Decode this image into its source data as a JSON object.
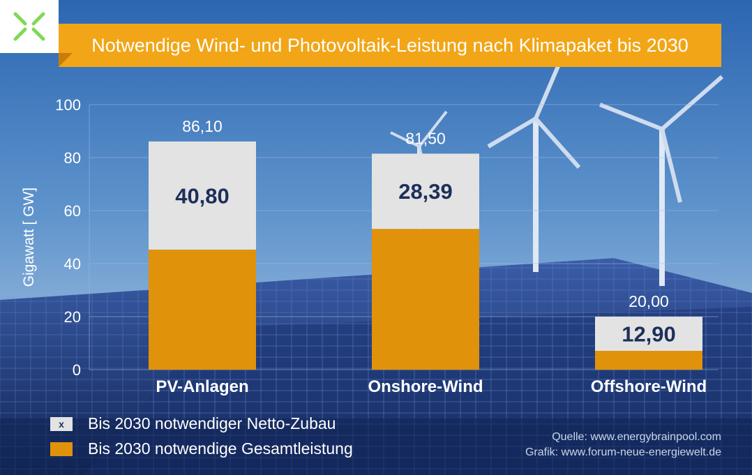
{
  "title": "Notwendige Wind- und Photovoltaik-Leistung nach Klimapaket bis 2030",
  "colors": {
    "brand_orange": "#f2a516",
    "bar_base": "#e0920a",
    "bar_top": "#e3e3e3",
    "logo_green": "#7ed957",
    "value_blue": "#1d2f5a"
  },
  "chart_data": {
    "type": "bar",
    "stacked": true,
    "categories": [
      "PV-Anlagen",
      "Onshore-Wind",
      "Offshore-Wind"
    ],
    "totals": [
      86.1,
      81.5,
      20.0
    ],
    "total_labels": [
      "86,10",
      "81,50",
      "20,00"
    ],
    "series": [
      {
        "name": "Bis 2030 notwendiger Netto-Zubau",
        "values": [
          40.8,
          28.39,
          12.9
        ],
        "labels": [
          "40,80",
          "28,39",
          "12,90"
        ]
      },
      {
        "name": "Bis 2030 notwendige Gesamtleistung",
        "values": [
          45.3,
          53.11,
          7.1
        ]
      }
    ],
    "ylabel": "Gigawatt [ GW]",
    "ylim": [
      0,
      100
    ],
    "yticks": [
      0,
      20,
      40,
      60,
      80,
      100
    ],
    "grid": true,
    "legend_position": "bottom-left"
  },
  "legend": {
    "marker_letter": "x",
    "items": [
      {
        "label": "Bis 2030 notwendiger Netto-Zubau"
      },
      {
        "label": "Bis 2030 notwendige Gesamtleistung"
      }
    ]
  },
  "source": {
    "line1": "Quelle: www.energybrainpool.com",
    "line2": "Grafik: www.forum-neue-energiewelt.de"
  },
  "icons": {
    "logo": "x-logo-icon"
  }
}
